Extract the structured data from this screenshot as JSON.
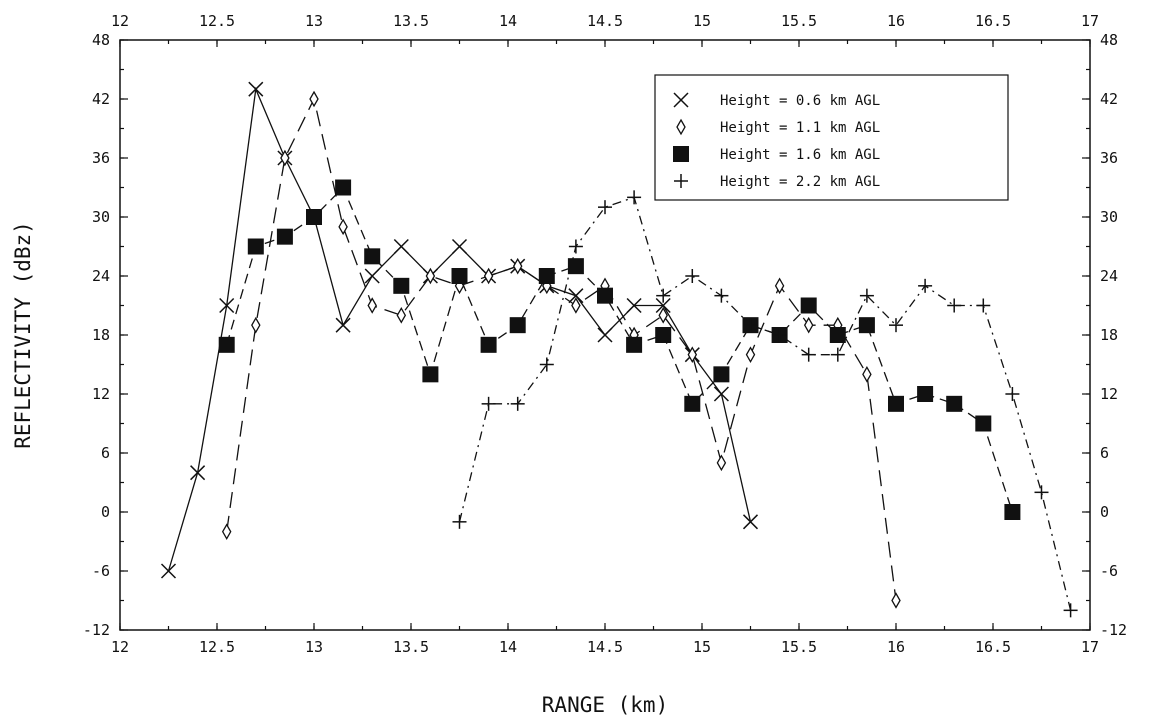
{
  "chart_data": {
    "type": "line",
    "xlabel": "RANGE (km)",
    "ylabel": "REFLECTIVITY (dBz)",
    "xlim": [
      12,
      17
    ],
    "ylim": [
      -12,
      48
    ],
    "x_ticks": [
      "12",
      "12.5",
      "13",
      "13.5",
      "14",
      "14.5",
      "15",
      "15.5",
      "16",
      "16.5",
      "17"
    ],
    "x_ticks_top": [
      "12",
      "12.5",
      "13",
      "13.5",
      "14",
      "14.5",
      "15",
      "15.5",
      "16",
      "16.5",
      "17"
    ],
    "y_ticks": [
      "-12",
      "-6",
      "0",
      "6",
      "12",
      "18",
      "24",
      "30",
      "36",
      "42",
      "48"
    ],
    "y_ticks_right": [
      "-12",
      "-6",
      "0",
      "6",
      "12",
      "18",
      "24",
      "30",
      "36",
      "42",
      "48"
    ],
    "grid": false,
    "legend_position": "top-right",
    "series": [
      {
        "name": "Height = 0.6 km AGL",
        "marker": "x",
        "line": "solid",
        "points": [
          [
            12.25,
            -6
          ],
          [
            12.4,
            4
          ],
          [
            12.55,
            21
          ],
          [
            12.7,
            43
          ],
          [
            12.85,
            36
          ],
          [
            13.0,
            30
          ],
          [
            13.15,
            19
          ],
          [
            13.3,
            24
          ],
          [
            13.45,
            27
          ],
          [
            13.6,
            24
          ],
          [
            13.75,
            27
          ],
          [
            13.9,
            24
          ],
          [
            14.05,
            25
          ],
          [
            14.2,
            23
          ],
          [
            14.35,
            22
          ],
          [
            14.5,
            18
          ],
          [
            14.65,
            21
          ],
          [
            14.8,
            21
          ],
          [
            14.95,
            16
          ],
          [
            15.1,
            12
          ],
          [
            15.25,
            -1
          ]
        ]
      },
      {
        "name": "Height = 1.1 km AGL",
        "marker": "diamond",
        "line": "long-dash",
        "points": [
          [
            12.55,
            -2
          ],
          [
            12.7,
            19
          ],
          [
            12.85,
            36
          ],
          [
            13.0,
            42
          ],
          [
            13.15,
            29
          ],
          [
            13.3,
            21
          ],
          [
            13.45,
            20
          ],
          [
            13.6,
            24
          ],
          [
            13.75,
            23
          ],
          [
            13.9,
            24
          ],
          [
            14.05,
            25
          ],
          [
            14.2,
            23
          ],
          [
            14.35,
            21
          ],
          [
            14.5,
            23
          ],
          [
            14.65,
            18
          ],
          [
            14.8,
            20
          ],
          [
            14.95,
            16
          ],
          [
            15.1,
            5
          ],
          [
            15.25,
            16
          ],
          [
            15.4,
            23
          ],
          [
            15.55,
            19
          ],
          [
            15.7,
            19
          ],
          [
            15.85,
            14
          ],
          [
            16.0,
            -9
          ]
        ]
      },
      {
        "name": "Height = 1.6 km AGL",
        "marker": "square",
        "line": "dash",
        "points": [
          [
            12.55,
            17
          ],
          [
            12.7,
            27
          ],
          [
            12.85,
            28
          ],
          [
            13.0,
            30
          ],
          [
            13.15,
            33
          ],
          [
            13.3,
            26
          ],
          [
            13.45,
            23
          ],
          [
            13.6,
            14
          ],
          [
            13.75,
            24
          ],
          [
            13.9,
            17
          ],
          [
            14.05,
            19
          ],
          [
            14.2,
            24
          ],
          [
            14.35,
            25
          ],
          [
            14.5,
            22
          ],
          [
            14.65,
            17
          ],
          [
            14.8,
            18
          ],
          [
            14.95,
            11
          ],
          [
            15.1,
            14
          ],
          [
            15.25,
            19
          ],
          [
            15.4,
            18
          ],
          [
            15.55,
            21
          ],
          [
            15.7,
            18
          ],
          [
            15.85,
            19
          ],
          [
            16.0,
            11
          ],
          [
            16.15,
            12
          ],
          [
            16.3,
            11
          ],
          [
            16.45,
            9
          ],
          [
            16.6,
            0
          ]
        ]
      },
      {
        "name": "Height = 2.2 km AGL",
        "marker": "plus",
        "line": "dash-dot",
        "points": [
          [
            13.75,
            -1
          ],
          [
            13.9,
            11
          ],
          [
            14.05,
            11
          ],
          [
            14.2,
            15
          ],
          [
            14.35,
            27
          ],
          [
            14.5,
            31
          ],
          [
            14.65,
            32
          ],
          [
            14.8,
            22
          ],
          [
            14.95,
            24
          ],
          [
            15.1,
            22
          ],
          [
            15.25,
            19
          ],
          [
            15.4,
            18
          ],
          [
            15.55,
            16
          ],
          [
            15.7,
            16
          ],
          [
            15.85,
            22
          ],
          [
            16.0,
            19
          ],
          [
            16.15,
            23
          ],
          [
            16.3,
            21
          ],
          [
            16.45,
            21
          ],
          [
            16.6,
            12
          ],
          [
            16.75,
            2
          ],
          [
            16.9,
            -10
          ]
        ]
      }
    ]
  }
}
